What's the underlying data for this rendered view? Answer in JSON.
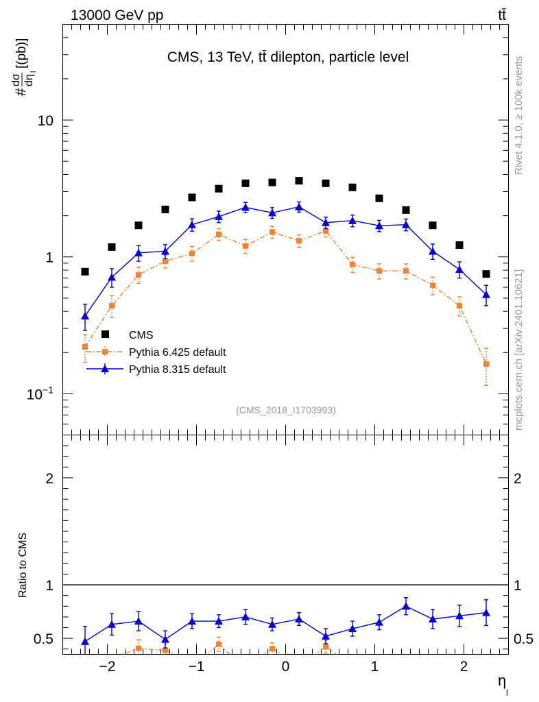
{
  "header": {
    "energy_label": "13000 GeV pp",
    "process_label": "tt̄",
    "rivet_label": "Rivet 4.1.0, ≥ 100k events",
    "source_label": "mcplots.cern.ch [arXiv:2401.10621]"
  },
  "colors": {
    "cms": "#000000",
    "pythia6": "#f58231",
    "pythia8": "#0000d8",
    "analysis_tag": "#999999"
  },
  "chart_data": [
    {
      "type": "scatter",
      "panel": "main",
      "title": "CMS, 13 TeV, tt̄ dilepton, particle level",
      "ylabel": "dσ/dη_l [pb]",
      "ylabel_parts": {
        "prefix": "#",
        "numerator": "dσ",
        "denominator": "dη",
        "subscript": "l",
        "unit": "[(pb)]"
      },
      "xlabel": "η",
      "xlabel_subscript": "l",
      "yscale": "log",
      "ylim": [
        0.05,
        50
      ],
      "xlim": [
        -2.5,
        2.5
      ],
      "analysis_tag": "(CMS_2018_I1703993)",
      "y_ticks": [
        {
          "value": 0.1,
          "base": "10",
          "exp": "−1"
        },
        {
          "value": 1,
          "base": "1",
          "exp": ""
        },
        {
          "value": 10,
          "base": "10",
          "exp": ""
        }
      ],
      "x": [
        -2.25,
        -1.95,
        -1.65,
        -1.35,
        -1.05,
        -0.75,
        -0.45,
        -0.15,
        0.15,
        0.45,
        0.75,
        1.05,
        1.35,
        1.65,
        1.95,
        2.25
      ],
      "series": [
        {
          "name": "CMS",
          "marker": "square",
          "values": [
            0.78,
            1.18,
            1.7,
            2.22,
            2.72,
            3.15,
            3.45,
            3.5,
            3.6,
            3.45,
            3.22,
            2.68,
            2.2,
            1.7,
            1.22,
            0.75
          ],
          "err_up": [
            0,
            0,
            0,
            0,
            0,
            0,
            0,
            0,
            0,
            0,
            0,
            0,
            0,
            0,
            0,
            0
          ],
          "err_down": [
            0,
            0,
            0,
            0,
            0,
            0,
            0,
            0,
            0,
            0,
            0,
            0,
            0,
            0,
            0,
            0
          ]
        },
        {
          "name": "Pythia 6.425 default",
          "marker": "square",
          "line": "dashdot",
          "values": [
            0.22,
            0.44,
            0.74,
            0.93,
            1.06,
            1.46,
            1.2,
            1.52,
            1.31,
            1.55,
            0.88,
            0.79,
            0.79,
            0.62,
            0.44,
            0.165
          ],
          "err_up": [
            0.05,
            0.08,
            0.1,
            0.1,
            0.13,
            0.15,
            0.14,
            0.15,
            0.14,
            0.15,
            0.11,
            0.1,
            0.1,
            0.09,
            0.07,
            0.05
          ],
          "err_down": [
            0.05,
            0.08,
            0.1,
            0.1,
            0.13,
            0.15,
            0.14,
            0.15,
            0.14,
            0.15,
            0.11,
            0.1,
            0.1,
            0.09,
            0.07,
            0.05
          ]
        },
        {
          "name": "Pythia 8.315 default",
          "marker": "triangle",
          "line": "solid",
          "values": [
            0.37,
            0.71,
            1.07,
            1.1,
            1.72,
            1.97,
            2.3,
            2.1,
            2.32,
            1.78,
            1.84,
            1.69,
            1.72,
            1.1,
            0.81,
            0.53
          ],
          "err_up": [
            0.08,
            0.11,
            0.14,
            0.13,
            0.18,
            0.19,
            0.2,
            0.19,
            0.2,
            0.17,
            0.18,
            0.16,
            0.17,
            0.14,
            0.11,
            0.09
          ],
          "err_down": [
            0.08,
            0.11,
            0.14,
            0.13,
            0.18,
            0.19,
            0.2,
            0.19,
            0.2,
            0.17,
            0.18,
            0.16,
            0.17,
            0.14,
            0.11,
            0.09
          ]
        }
      ]
    },
    {
      "type": "scatter",
      "panel": "ratio",
      "ylabel": "Ratio to CMS",
      "ylim": [
        0.35,
        2.4
      ],
      "xlim": [
        -2.5,
        2.5
      ],
      "y_ticks": [
        0.5,
        1,
        2
      ],
      "y_tick_labels": [
        "0.5",
        "1",
        "2"
      ],
      "x_ticks": [
        -2,
        -1,
        0,
        1,
        2
      ],
      "x_tick_labels": [
        "−2",
        "−1",
        "0",
        "1",
        "2"
      ],
      "reference_line": 1,
      "x": [
        -2.25,
        -1.95,
        -1.65,
        -1.35,
        -1.05,
        -0.75,
        -0.45,
        -0.15,
        0.15,
        0.45,
        0.75,
        1.05,
        1.35,
        1.65,
        1.95,
        2.25
      ],
      "series": [
        {
          "name": "Pythia 6.425 default",
          "visible_points": [
            {
              "x": -1.65,
              "y": 0.406,
              "err": 0.08
            },
            {
              "x": -1.35,
              "y": 0.387,
              "err": 0.06
            },
            {
              "x": -0.75,
              "y": 0.445,
              "err": 0.065
            },
            {
              "x": -0.15,
              "y": 0.402,
              "err": 0.055
            },
            {
              "x": 0.45,
              "y": 0.422,
              "err": 0.06
            }
          ]
        },
        {
          "name": "Pythia 8.315 default",
          "values": [
            0.47,
            0.63,
            0.66,
            0.49,
            0.66,
            0.66,
            0.7,
            0.63,
            0.68,
            0.52,
            0.59,
            0.65,
            0.8,
            0.68,
            0.71,
            0.74
          ],
          "err_up": [
            0.14,
            0.1,
            0.09,
            0.08,
            0.07,
            0.06,
            0.07,
            0.06,
            0.06,
            0.07,
            0.07,
            0.07,
            0.08,
            0.09,
            0.1,
            0.12
          ],
          "err_down": [
            0.14,
            0.1,
            0.09,
            0.08,
            0.07,
            0.06,
            0.07,
            0.06,
            0.06,
            0.07,
            0.07,
            0.07,
            0.08,
            0.09,
            0.1,
            0.12
          ]
        }
      ]
    }
  ]
}
